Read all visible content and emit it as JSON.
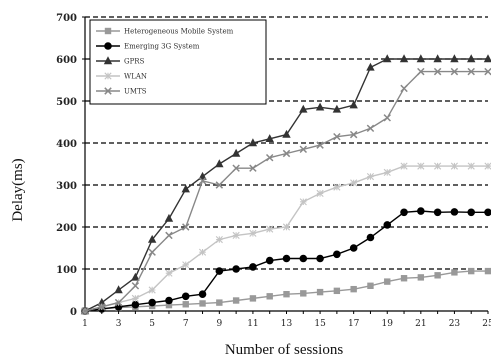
{
  "chart_data": {
    "type": "line",
    "xlabel": "Number of sessions",
    "ylabel": "Delay(ms)",
    "xlim": [
      1,
      25
    ],
    "ylim": [
      0,
      700
    ],
    "x_ticks": [
      1,
      3,
      5,
      7,
      9,
      11,
      13,
      15,
      17,
      19,
      21,
      23,
      25
    ],
    "y_ticks": [
      0,
      100,
      200,
      300,
      400,
      500,
      600,
      700
    ],
    "grid": "horizontal-dashed",
    "legend_position": "top-left",
    "x": [
      1,
      2,
      3,
      4,
      5,
      6,
      7,
      8,
      9,
      10,
      11,
      12,
      13,
      14,
      15,
      16,
      17,
      18,
      19,
      20,
      21,
      22,
      23,
      24,
      25
    ],
    "series": [
      {
        "name": "Heterogeneous Mobile System",
        "color": "#999999",
        "marker": "square",
        "values": [
          0,
          5,
          8,
          10,
          12,
          14,
          16,
          18,
          20,
          25,
          30,
          35,
          40,
          42,
          45,
          48,
          52,
          60,
          70,
          78,
          80,
          85,
          92,
          95,
          95
        ]
      },
      {
        "name": "Emerging 3G System",
        "color": "#000000",
        "marker": "circle",
        "values": [
          0,
          5,
          10,
          15,
          20,
          25,
          35,
          40,
          95,
          100,
          105,
          120,
          125,
          125,
          125,
          135,
          150,
          175,
          205,
          235,
          238,
          235,
          236,
          235,
          235
        ]
      },
      {
        "name": "GPRS",
        "color": "#333333",
        "marker": "triangle",
        "values": [
          0,
          20,
          50,
          80,
          170,
          220,
          290,
          320,
          350,
          375,
          400,
          410,
          420,
          480,
          485,
          480,
          490,
          580,
          600,
          600,
          600,
          600,
          600,
          600,
          600
        ]
      },
      {
        "name": "WLAN",
        "color": "#c4c4c4",
        "marker": "star",
        "values": [
          0,
          10,
          20,
          30,
          50,
          90,
          110,
          140,
          170,
          180,
          185,
          195,
          200,
          260,
          280,
          295,
          305,
          320,
          330,
          345,
          345,
          345,
          345,
          345,
          345
        ]
      },
      {
        "name": "UMTS",
        "color": "#888888",
        "marker": "x",
        "values": [
          0,
          10,
          20,
          60,
          140,
          180,
          200,
          310,
          300,
          340,
          340,
          365,
          375,
          385,
          395,
          415,
          420,
          435,
          460,
          530,
          570,
          570,
          570,
          570,
          570
        ]
      }
    ]
  }
}
